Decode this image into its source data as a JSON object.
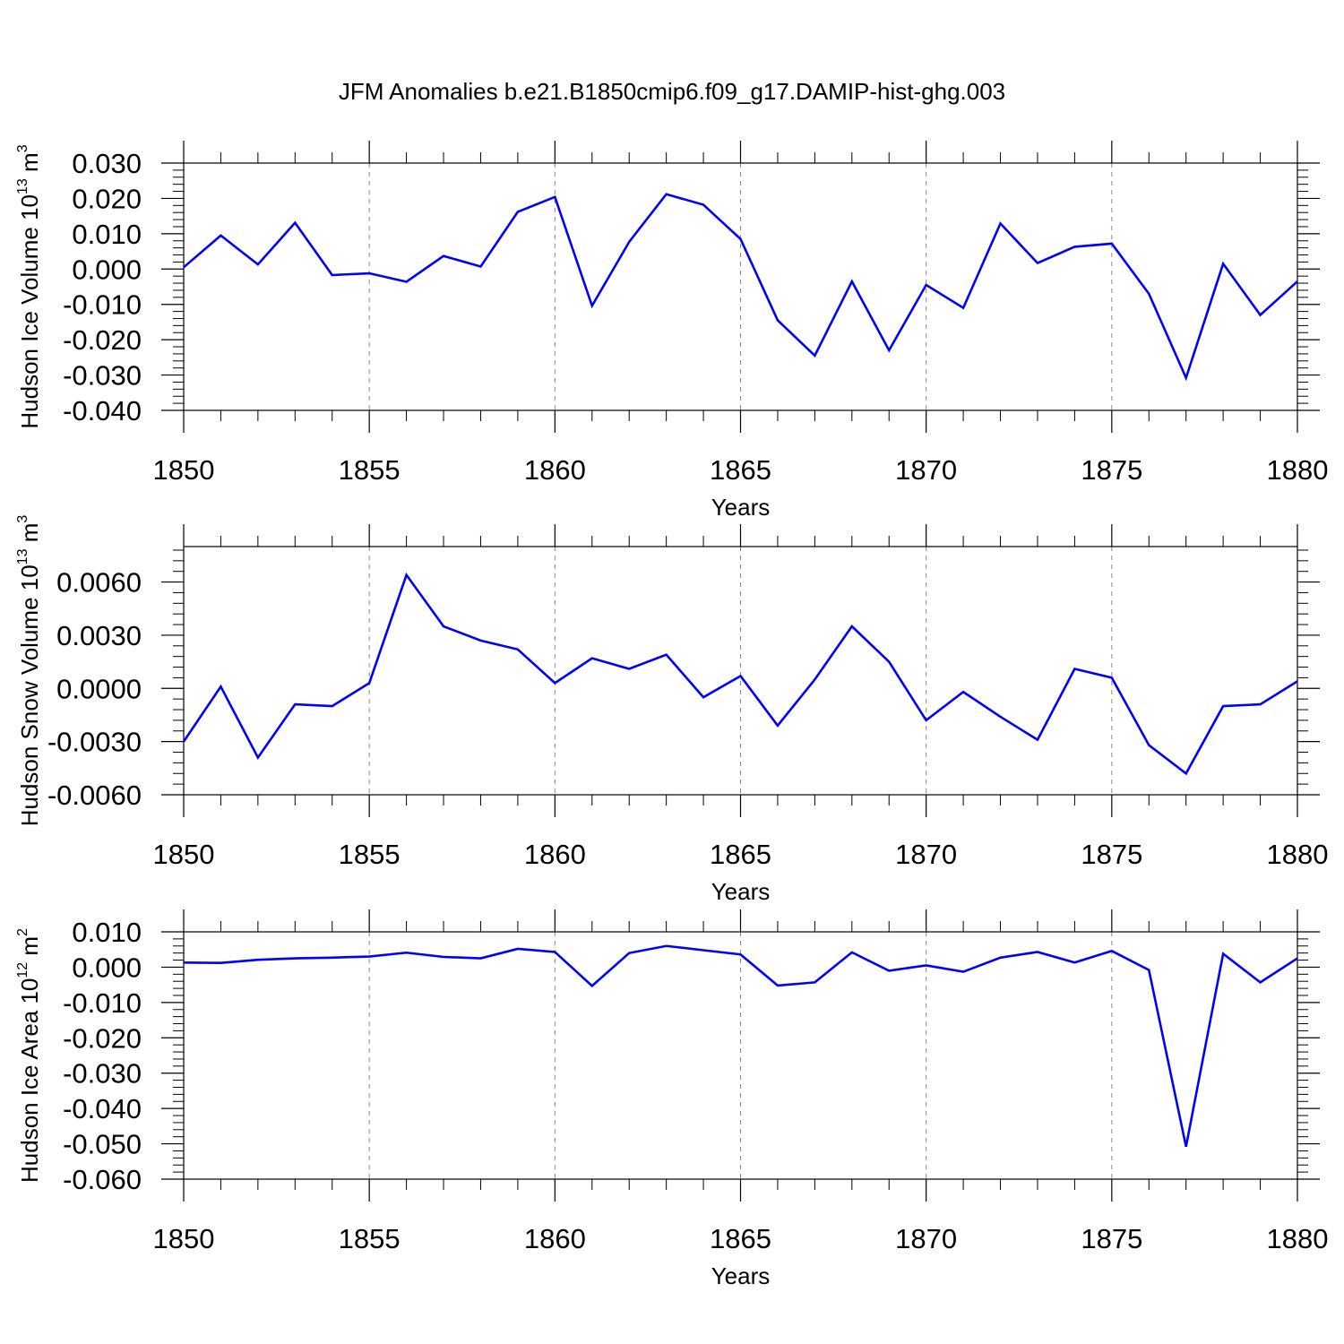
{
  "title": "JFM Anomalies b.e21.B1850cmip6.f09_g17.DAMIP-hist-ghg.003",
  "line_color": "#0000ff",
  "chart_data": [
    {
      "type": "line",
      "ylabel": "Hudson Ice Volume 10",
      "ylabel_exp": "13",
      "ylabel_unit": "m",
      "ylabel_unit_exp": "3",
      "xlabel": "Years",
      "xlim": [
        1850,
        1880
      ],
      "ylim": [
        -0.04,
        0.03
      ],
      "ytick_values": [
        0.03,
        0.02,
        0.01,
        0.0,
        -0.01,
        -0.02,
        -0.03,
        -0.04
      ],
      "ytick_labels": [
        "0.030",
        "0.020",
        "0.010",
        "0.000",
        "-0.010",
        "-0.020",
        "-0.030",
        "-0.040"
      ],
      "xtick_values": [
        1850,
        1855,
        1860,
        1865,
        1870,
        1875,
        1880
      ],
      "xtick_labels": [
        "1850",
        "1855",
        "1860",
        "1865",
        "1870",
        "1875",
        "1880"
      ],
      "x": [
        1850,
        1851,
        1852,
        1853,
        1854,
        1855,
        1856,
        1857,
        1858,
        1859,
        1860,
        1861,
        1862,
        1863,
        1864,
        1865,
        1866,
        1867,
        1868,
        1869,
        1870,
        1871,
        1872,
        1873,
        1874,
        1875,
        1876,
        1877,
        1878,
        1879,
        1880
      ],
      "y": [
        0.0005,
        0.0095,
        0.0013,
        0.0131,
        -0.0017,
        -0.0012,
        -0.0036,
        0.0037,
        0.0007,
        0.0162,
        0.0204,
        -0.0104,
        0.0077,
        0.0212,
        0.0182,
        0.0085,
        -0.0145,
        -0.0245,
        -0.0035,
        -0.023,
        -0.0045,
        -0.011,
        0.0129,
        0.0017,
        0.0063,
        0.0072,
        -0.007,
        -0.0308,
        0.0015,
        -0.013,
        -0.0035
      ]
    },
    {
      "type": "line",
      "ylabel": "Hudson Snow Volume 10",
      "ylabel_exp": "13",
      "ylabel_unit": "m",
      "ylabel_unit_exp": "3",
      "xlabel": "Years",
      "xlim": [
        1850,
        1880
      ],
      "ylim": [
        -0.006,
        0.008
      ],
      "ytick_values": [
        0.006,
        0.003,
        0.0,
        -0.003,
        -0.006
      ],
      "ytick_labels": [
        "0.0060",
        "0.0030",
        "0.0000",
        "-0.0030",
        "-0.0060"
      ],
      "xtick_values": [
        1850,
        1855,
        1860,
        1865,
        1870,
        1875,
        1880
      ],
      "xtick_labels": [
        "1850",
        "1855",
        "1860",
        "1865",
        "1870",
        "1875",
        "1880"
      ],
      "x": [
        1850,
        1851,
        1852,
        1853,
        1854,
        1855,
        1856,
        1857,
        1858,
        1859,
        1860,
        1861,
        1862,
        1863,
        1864,
        1865,
        1866,
        1867,
        1868,
        1869,
        1870,
        1871,
        1872,
        1873,
        1874,
        1875,
        1876,
        1877,
        1878,
        1879,
        1880
      ],
      "y": [
        -0.003,
        0.0001,
        -0.0039,
        -0.0009,
        -0.001,
        0.0003,
        0.0064,
        0.0035,
        0.0027,
        0.0022,
        0.0003,
        0.0017,
        0.0011,
        0.0019,
        -0.0005,
        0.0007,
        -0.0021,
        0.0005,
        0.0035,
        0.0015,
        -0.0018,
        -0.0002,
        -0.0016,
        -0.0029,
        0.0011,
        0.0006,
        -0.0032,
        -0.0048,
        -0.001,
        -0.0009,
        0.0004
      ]
    },
    {
      "type": "line",
      "ylabel": "Hudson Ice Area 10",
      "ylabel_exp": "12",
      "ylabel_unit": "m",
      "ylabel_unit_exp": "2",
      "xlabel": "Years",
      "xlim": [
        1850,
        1880
      ],
      "ylim": [
        -0.06,
        0.01
      ],
      "ytick_values": [
        0.01,
        0.0,
        -0.01,
        -0.02,
        -0.03,
        -0.04,
        -0.05,
        -0.06
      ],
      "ytick_labels": [
        "0.010",
        "0.000",
        "-0.010",
        "-0.020",
        "-0.030",
        "-0.040",
        "-0.050",
        "-0.060"
      ],
      "xtick_values": [
        1850,
        1855,
        1860,
        1865,
        1870,
        1875,
        1880
      ],
      "xtick_labels": [
        "1850",
        "1855",
        "1860",
        "1865",
        "1870",
        "1875",
        "1880"
      ],
      "x": [
        1850,
        1851,
        1852,
        1853,
        1854,
        1855,
        1856,
        1857,
        1858,
        1859,
        1860,
        1861,
        1862,
        1863,
        1864,
        1865,
        1866,
        1867,
        1868,
        1869,
        1870,
        1871,
        1872,
        1873,
        1874,
        1875,
        1876,
        1877,
        1878,
        1879,
        1880
      ],
      "y": [
        0.0013,
        0.0012,
        0.0021,
        0.0025,
        0.0027,
        0.003,
        0.0041,
        0.0029,
        0.0025,
        0.0052,
        0.0043,
        -0.0053,
        0.004,
        0.006,
        0.0048,
        0.0036,
        -0.0052,
        -0.0043,
        0.0042,
        -0.001,
        0.0005,
        -0.0013,
        0.0027,
        0.0043,
        0.0013,
        0.0046,
        -0.0008,
        -0.0508,
        0.0038,
        -0.0043,
        0.0025
      ]
    }
  ]
}
